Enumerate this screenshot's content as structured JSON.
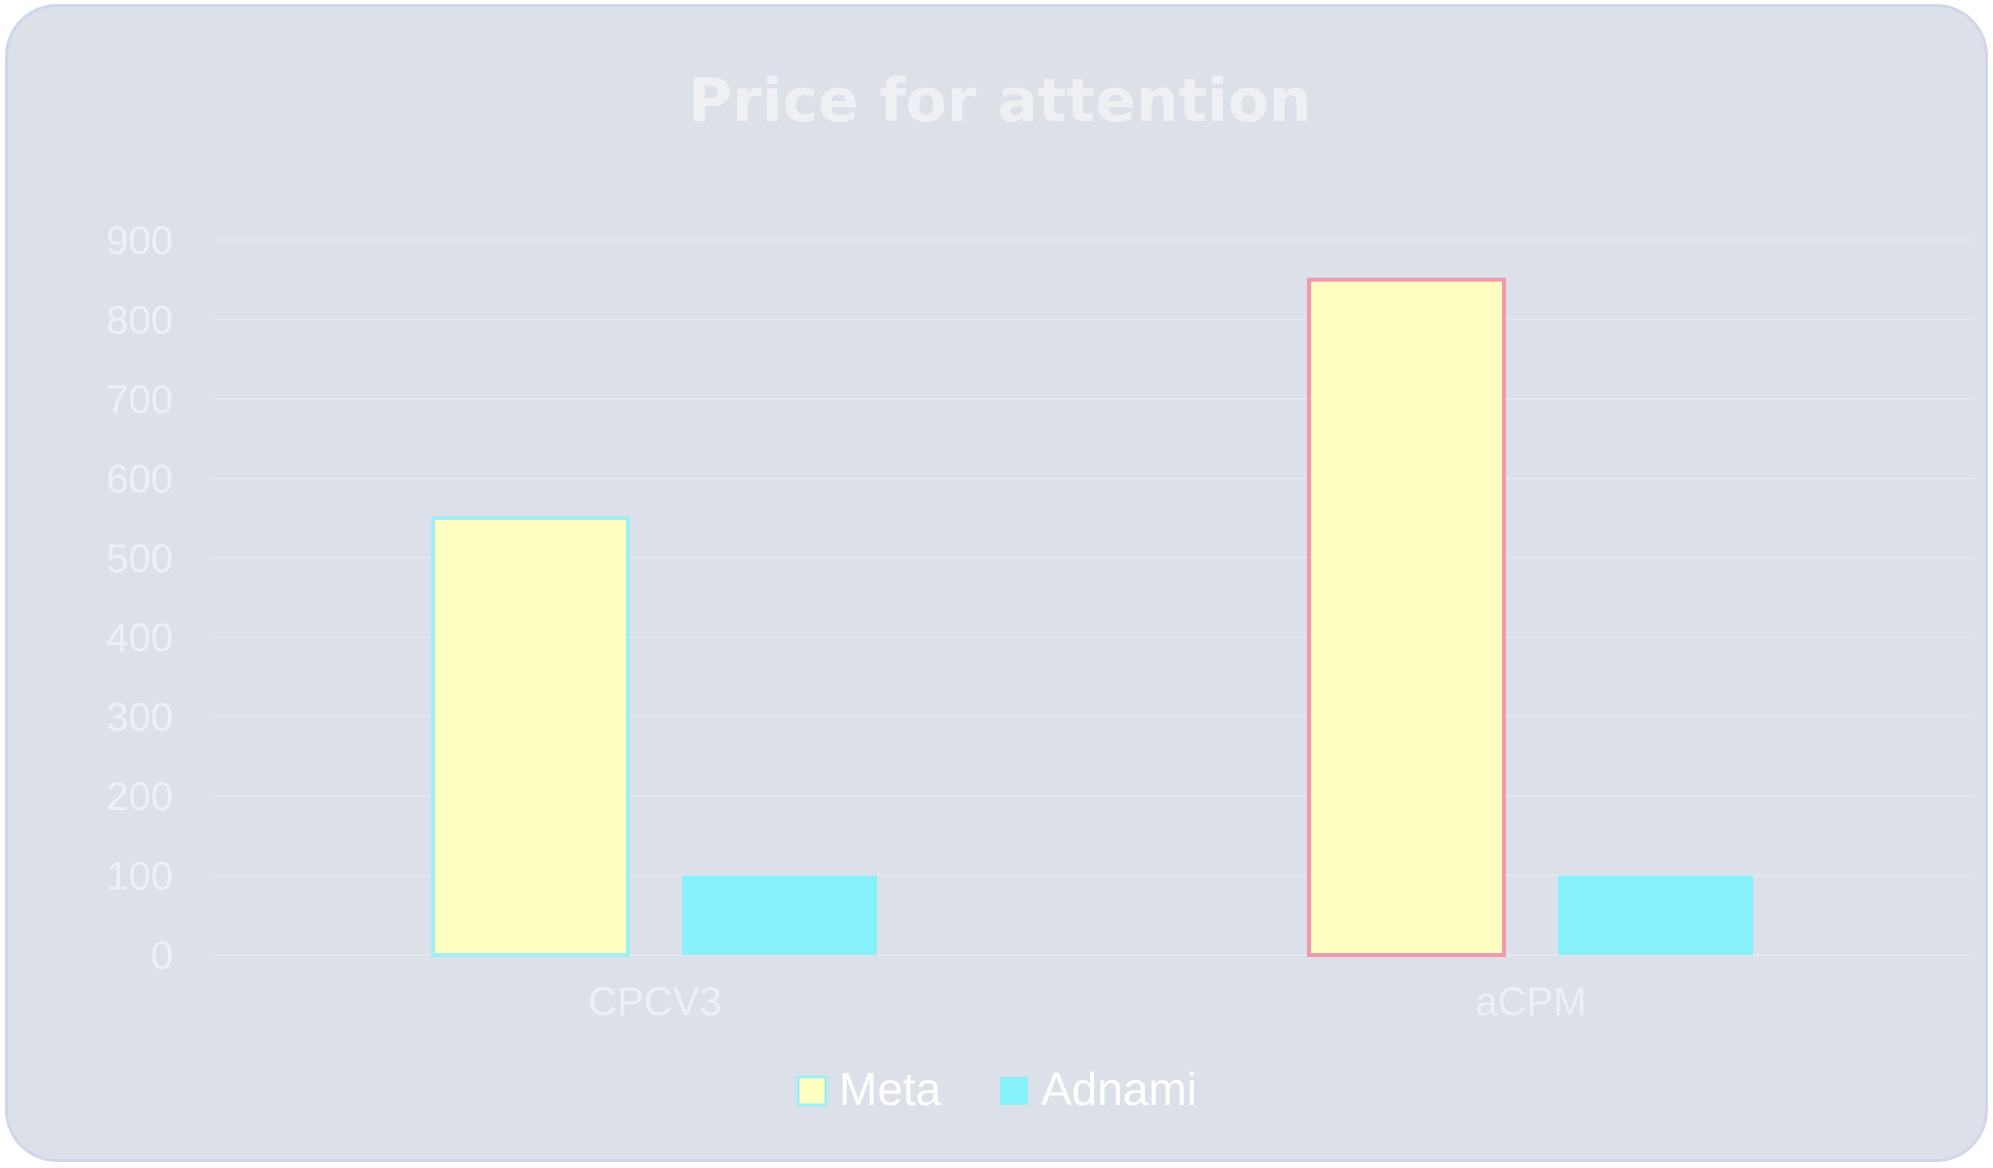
{
  "chart_data": {
    "type": "bar",
    "title": "Price for attention",
    "categories": [
      "CPCV3",
      "aCPM"
    ],
    "series": [
      {
        "name": "Meta",
        "values": [
          550,
          850
        ],
        "color": "#ffffc2"
      },
      {
        "name": "Adnami",
        "values": [
          100,
          100
        ],
        "color": "#87f1fb"
      }
    ],
    "highlight_borders": [
      "#9eeef4",
      "#f09ab0"
    ],
    "ylim": [
      0,
      900
    ],
    "yticks": [
      0,
      100,
      200,
      300,
      400,
      500,
      600,
      700,
      800,
      900
    ],
    "xlabel": "",
    "ylabel": "",
    "legend": "bottom-center"
  }
}
